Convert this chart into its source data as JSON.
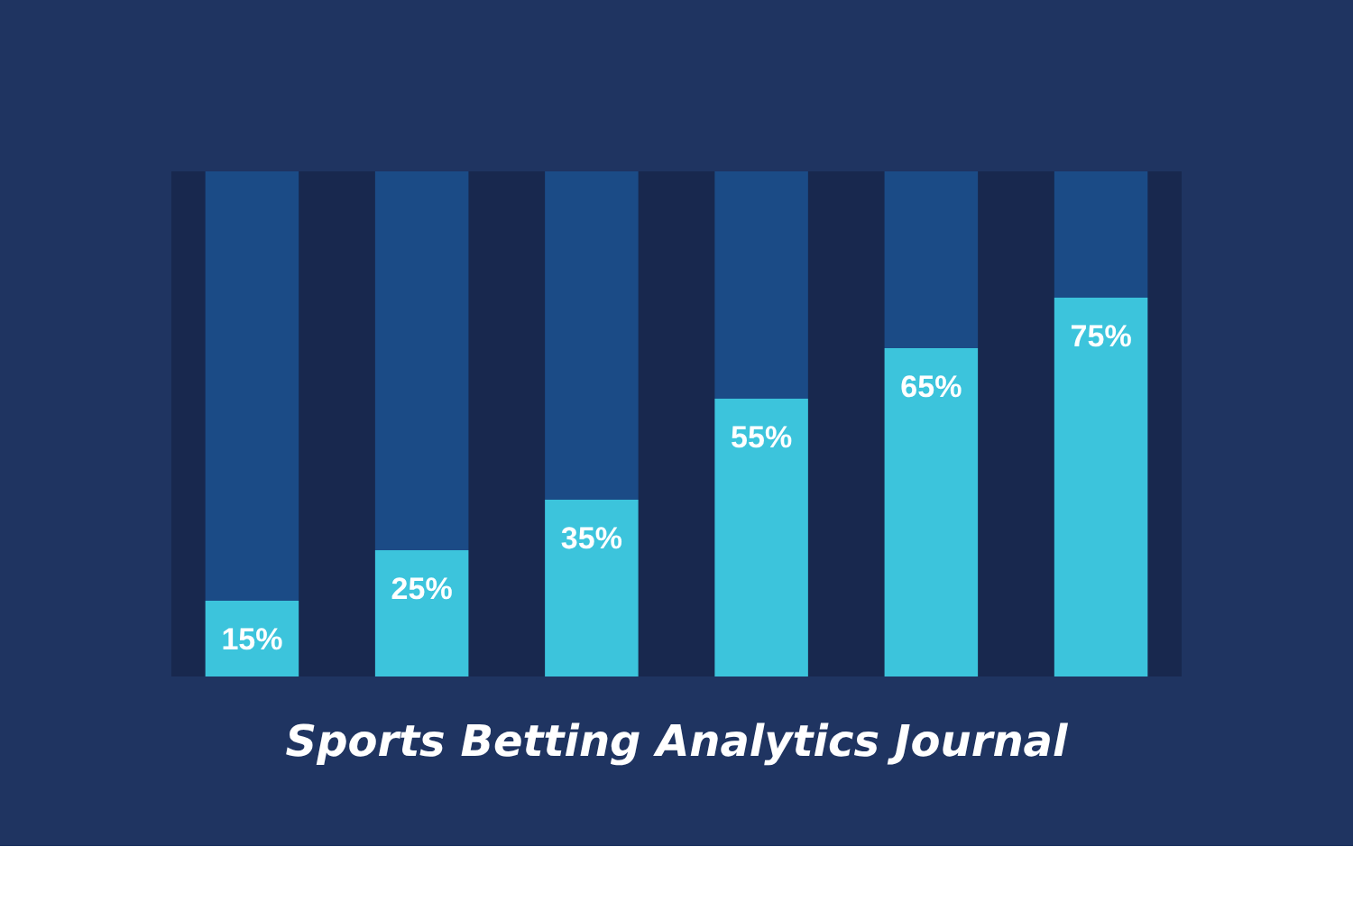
{
  "chart_data": {
    "type": "bar",
    "title": "Sports Betting Analytics Journal",
    "categories": [
      null,
      null,
      null,
      null,
      null,
      null
    ],
    "stacked": true,
    "legend": false,
    "grid": false,
    "tick_labels": false,
    "series": [
      {
        "color": "#3cc4dc",
        "values": [
          15,
          25,
          35,
          55,
          65,
          75
        ],
        "value_labels": [
          "15%",
          "25%",
          "35%",
          "55%",
          "65%",
          "75%"
        ]
      },
      {
        "color": "#1b4b86",
        "values": [
          85,
          75,
          65,
          45,
          35,
          25
        ]
      }
    ]
  }
}
